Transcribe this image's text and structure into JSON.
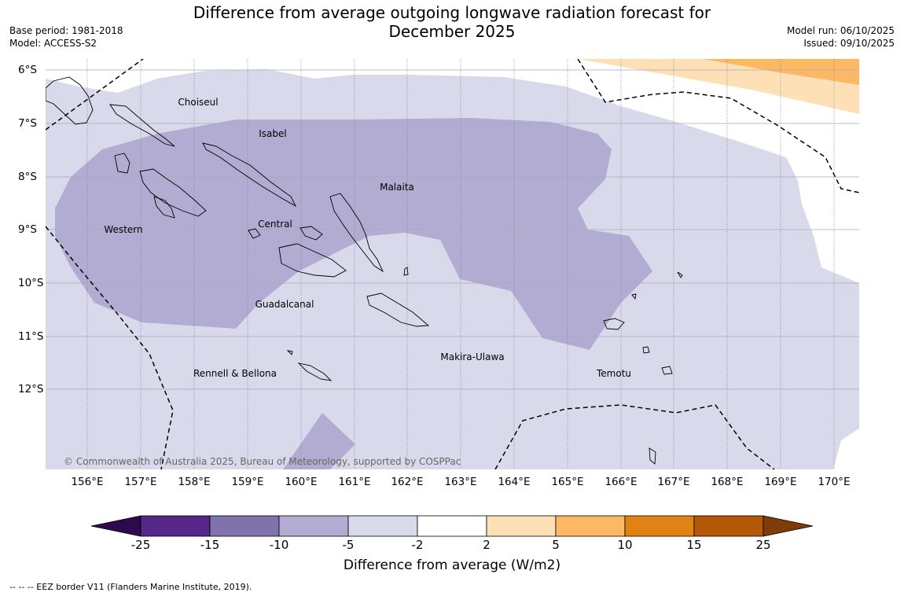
{
  "title_line1": "Difference from average outgoing longwave radiation forecast for",
  "title_line2": "December 2025",
  "meta": {
    "base_period": "Base period: 1981-2018",
    "model": "Model: ACCESS-S2",
    "model_run": "Model run: 06/10/2025",
    "issued": "Issued: 09/10/2025"
  },
  "map": {
    "lon_labels": [
      "156°E",
      "157°E",
      "158°E",
      "159°E",
      "160°E",
      "161°E",
      "162°E",
      "163°E",
      "164°E",
      "165°E",
      "166°E",
      "167°E",
      "168°E",
      "169°E",
      "170°E"
    ],
    "lat_labels": [
      "6°S",
      "7°S",
      "8°S",
      "9°S",
      "10°S",
      "11°S",
      "12°S"
    ],
    "provinces": [
      {
        "name": "Choiseul"
      },
      {
        "name": "Isabel"
      },
      {
        "name": "Malaita"
      },
      {
        "name": "Western"
      },
      {
        "name": "Central"
      },
      {
        "name": "Guadalcanal"
      },
      {
        "name": "Makira-Ulawa"
      },
      {
        "name": "Rennell & Bellona"
      },
      {
        "name": "Temotu"
      }
    ],
    "copyright": "© Commonwealth of Australia 2025, Bureau of Meteorology, supported by COSPPac"
  },
  "colorbar": {
    "title": "Difference from average (W/m2)",
    "ticks": [
      "-25",
      "-15",
      "-10",
      "-5",
      "-2",
      "2",
      "5",
      "10",
      "15",
      "25"
    ],
    "colors": {
      "lt_-25": "#2d0a4e",
      "-25_-15": "#542788",
      "-15_-10": "#8073ac",
      "-10_-5": "#b2abd2",
      "-5_-2": "#d8daeb",
      "-2_2": "#ffffff",
      "2_5": "#fee0b6",
      "5_10": "#fdb863",
      "10_15": "#e08214",
      "15_25": "#b35806",
      "gt_25": "#7f3b08"
    }
  },
  "eez_note": "--  --  -- EEZ border V11 (Flanders Marine Institute, 2019)."
}
